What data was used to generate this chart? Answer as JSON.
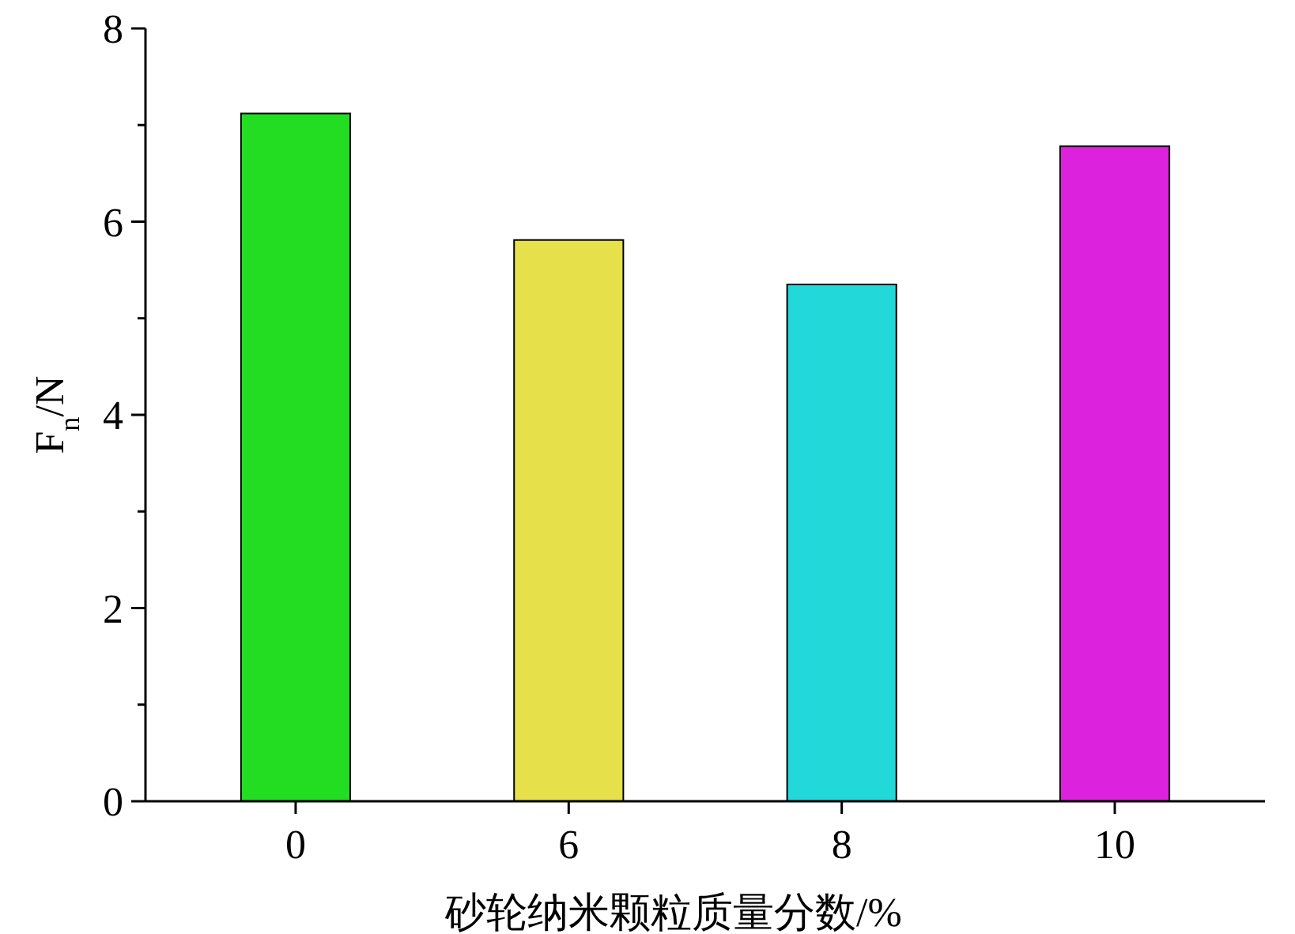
{
  "chart_data": {
    "type": "bar",
    "xlabel": "砂轮纳米颗粒质量分数/%",
    "ylabel": "F$_{n}$/N",
    "categories": [
      "0",
      "6",
      "8",
      "10"
    ],
    "values": [
      7.12,
      5.81,
      5.35,
      6.78
    ],
    "colors": [
      "#22dd22",
      "#e6e04a",
      "#22d8d8",
      "#dd22dd"
    ],
    "ylim": [
      0,
      8
    ],
    "yticks": [
      0,
      {
        "value": 1,
        "label": null
      },
      2,
      {
        "value": 3,
        "label": null
      },
      4,
      {
        "value": 5,
        "label": null
      },
      6,
      {
        "value": 7,
        "label": null
      },
      8
    ],
    "grid": false
  }
}
